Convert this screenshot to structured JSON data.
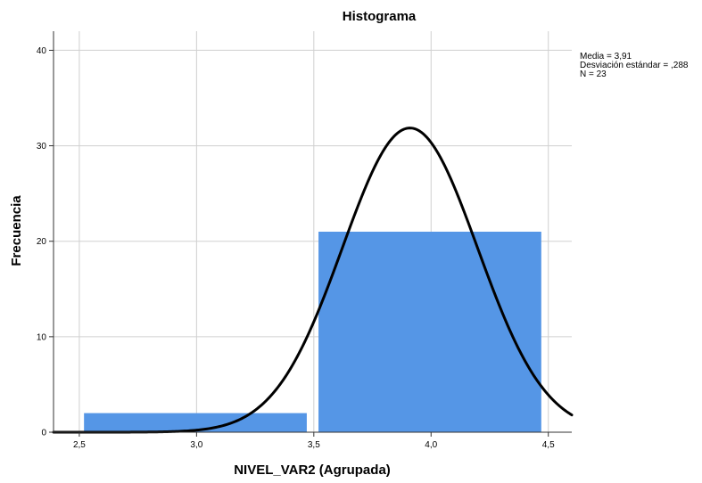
{
  "chart_data": {
    "type": "bar",
    "title": "Histograma",
    "xlabel": "NIVEL_VAR2 (Agrupada)",
    "ylabel": "Frecuencia",
    "x_ticks": [
      {
        "value": 2.5,
        "label": "2,5"
      },
      {
        "value": 3.0,
        "label": "3,0"
      },
      {
        "value": 3.5,
        "label": "3,5"
      },
      {
        "value": 4.0,
        "label": "4,0"
      },
      {
        "value": 4.5,
        "label": "4,5"
      }
    ],
    "y_ticks": [
      {
        "value": 0,
        "label": "0"
      },
      {
        "value": 10,
        "label": "10"
      },
      {
        "value": 20,
        "label": "20"
      },
      {
        "value": 30,
        "label": "30"
      },
      {
        "value": 40,
        "label": "40"
      }
    ],
    "xlim": [
      2.39,
      4.6
    ],
    "ylim": [
      0,
      42
    ],
    "bins": [
      {
        "x_start": 2.52,
        "x_end": 3.47,
        "value": 2
      },
      {
        "x_start": 3.52,
        "x_end": 4.47,
        "value": 21
      }
    ],
    "normal_curve": {
      "mean": 3.91,
      "sd": 0.288,
      "n": 23,
      "bin_width": 1.0
    },
    "stats_lines": [
      "Media = 3,91",
      "Desviación estándar = ,288",
      "N = 23"
    ],
    "grid": true,
    "colors": {
      "bar_fill": "#5596E6",
      "curve": "#000000",
      "grid": "#d0d0d0",
      "axis": "#333333"
    }
  }
}
